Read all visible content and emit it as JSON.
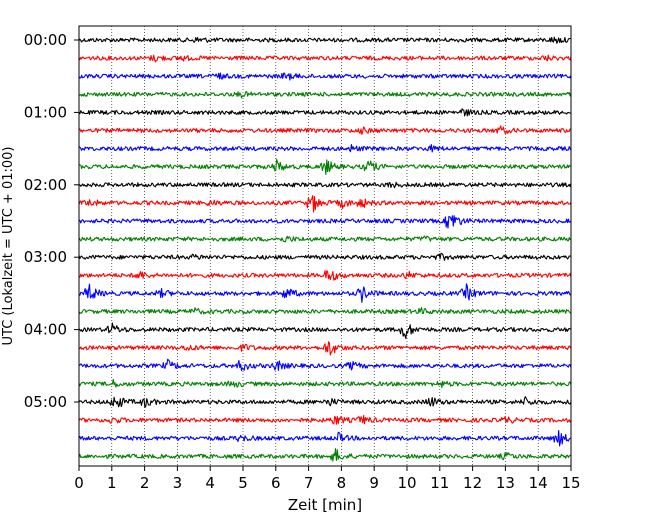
{
  "chart_data": {
    "type": "line",
    "subtype": "helicorder",
    "xlabel": "Zeit  [min]",
    "ylabel": "UTC (Lokalzeit = UTC + 01:00)",
    "xlim": [
      0,
      15
    ],
    "x_ticks": [
      "0",
      "1",
      "2",
      "3",
      "4",
      "5",
      "6",
      "7",
      "8",
      "9",
      "10",
      "11",
      "12",
      "13",
      "14",
      "15"
    ],
    "y_ticks": [
      "00:00",
      "01:00",
      "02:00",
      "03:00",
      "04:00",
      "05:00"
    ],
    "trace_interval_min": 15,
    "color_cycle": [
      "#000000",
      "#ff0000",
      "#0000ff",
      "#008000"
    ],
    "grid": "vertical dotted at each minute",
    "traces": [
      {
        "start": "00:00",
        "events": [
          {
            "t": 3.6,
            "a": 1.4
          },
          {
            "t": 14.5,
            "a": 1.8
          }
        ]
      },
      {
        "start": "00:15",
        "events": [
          {
            "t": 2.3,
            "a": 1.6
          },
          {
            "t": 3.1,
            "a": 1.2
          },
          {
            "t": 14.2,
            "a": 1.3
          }
        ]
      },
      {
        "start": "00:30",
        "events": [
          {
            "t": 4.2,
            "a": 1.6
          },
          {
            "t": 6.3,
            "a": 2.0
          }
        ]
      },
      {
        "start": "00:45",
        "events": [
          {
            "t": 4.9,
            "a": 1.3
          }
        ]
      },
      {
        "start": "01:00",
        "events": [
          {
            "t": 11.7,
            "a": 2.0
          }
        ]
      },
      {
        "start": "01:15",
        "events": [
          {
            "t": 8.6,
            "a": 1.6
          },
          {
            "t": 12.8,
            "a": 2.3
          }
        ]
      },
      {
        "start": "01:30",
        "events": [
          {
            "t": 8.3,
            "a": 1.5
          },
          {
            "t": 10.7,
            "a": 1.4
          }
        ]
      },
      {
        "start": "01:45",
        "events": [
          {
            "t": 6.0,
            "a": 3.6
          },
          {
            "t": 7.5,
            "a": 4.2
          },
          {
            "t": 8.8,
            "a": 4.0
          }
        ]
      },
      {
        "start": "02:00",
        "events": [
          {
            "t": 9.5,
            "a": 1.3
          }
        ]
      },
      {
        "start": "02:15",
        "events": [
          {
            "t": 0.3,
            "a": 2.0
          },
          {
            "t": 4.0,
            "a": 1.4
          },
          {
            "t": 7.1,
            "a": 5.5
          },
          {
            "t": 8.0,
            "a": 2.5
          },
          {
            "t": 8.6,
            "a": 2.4
          }
        ]
      },
      {
        "start": "02:30",
        "events": [
          {
            "t": 11.3,
            "a": 7.0
          }
        ]
      },
      {
        "start": "02:45",
        "events": [
          {
            "t": 6.3,
            "a": 1.5
          },
          {
            "t": 10.5,
            "a": 1.2
          }
        ]
      },
      {
        "start": "03:00",
        "events": [
          {
            "t": 3.5,
            "a": 1.2
          },
          {
            "t": 11.0,
            "a": 1.4
          }
        ]
      },
      {
        "start": "03:15",
        "events": [
          {
            "t": 1.8,
            "a": 2.6
          },
          {
            "t": 7.6,
            "a": 4.5
          },
          {
            "t": 10.0,
            "a": 1.8
          }
        ]
      },
      {
        "start": "03:30",
        "events": [
          {
            "t": 0.3,
            "a": 5.0
          },
          {
            "t": 2.5,
            "a": 2.0
          },
          {
            "t": 6.3,
            "a": 3.5
          },
          {
            "t": 8.6,
            "a": 4.5
          },
          {
            "t": 11.8,
            "a": 4.5
          }
        ]
      },
      {
        "start": "03:45",
        "events": [
          {
            "t": 3.5,
            "a": 1.4
          },
          {
            "t": 10.4,
            "a": 1.5
          }
        ]
      },
      {
        "start": "04:00",
        "events": [
          {
            "t": 1.0,
            "a": 3.0
          },
          {
            "t": 9.9,
            "a": 6.0
          }
        ]
      },
      {
        "start": "04:15",
        "events": [
          {
            "t": 3.3,
            "a": 1.4
          },
          {
            "t": 5.0,
            "a": 1.8
          },
          {
            "t": 7.6,
            "a": 5.2
          }
        ]
      },
      {
        "start": "04:30",
        "events": [
          {
            "t": 2.7,
            "a": 2.6
          },
          {
            "t": 4.9,
            "a": 3.5
          },
          {
            "t": 6.0,
            "a": 3.0
          },
          {
            "t": 8.3,
            "a": 2.0
          }
        ]
      },
      {
        "start": "04:45",
        "events": [
          {
            "t": 1.0,
            "a": 2.0
          },
          {
            "t": 4.7,
            "a": 1.5
          },
          {
            "t": 11.0,
            "a": 1.6
          }
        ]
      },
      {
        "start": "05:00",
        "events": [
          {
            "t": 1.1,
            "a": 4.6
          },
          {
            "t": 2.0,
            "a": 2.5
          },
          {
            "t": 7.6,
            "a": 2.0
          },
          {
            "t": 10.7,
            "a": 3.0
          },
          {
            "t": 13.6,
            "a": 2.2
          }
        ]
      },
      {
        "start": "05:15",
        "events": [
          {
            "t": 1.0,
            "a": 1.8
          },
          {
            "t": 7.8,
            "a": 2.8
          },
          {
            "t": 8.6,
            "a": 2.5
          },
          {
            "t": 13.0,
            "a": 1.8
          }
        ]
      },
      {
        "start": "05:30",
        "events": [
          {
            "t": 4.9,
            "a": 1.8
          },
          {
            "t": 7.9,
            "a": 2.4
          },
          {
            "t": 14.6,
            "a": 4.5
          }
        ]
      },
      {
        "start": "05:45",
        "events": [
          {
            "t": 7.8,
            "a": 4.0
          },
          {
            "t": 13.0,
            "a": 1.8
          }
        ]
      }
    ]
  }
}
